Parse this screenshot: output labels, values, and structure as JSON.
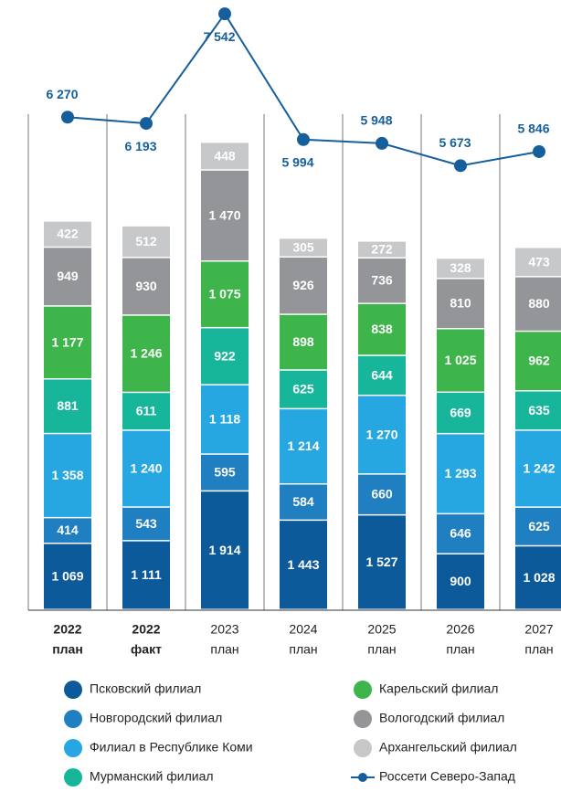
{
  "chart_data": {
    "type": "stacked_bar_line",
    "categories": [
      [
        "2022",
        "план"
      ],
      [
        "2022",
        "факт"
      ],
      [
        "2023",
        "план"
      ],
      [
        "2024",
        "план"
      ],
      [
        "2025",
        "план"
      ],
      [
        "2026",
        "план"
      ],
      [
        "2027",
        "план"
      ]
    ],
    "series": [
      {
        "name": "Псковский филиал",
        "color": "#0d5a9a",
        "values": [
          1069,
          1111,
          1914,
          1443,
          1527,
          900,
          1028
        ],
        "value_labels": [
          "1 069",
          "1 111",
          "1 914",
          "1 443",
          "1 527",
          "900",
          "1 028"
        ]
      },
      {
        "name": "Новгородский филиал",
        "color": "#1f7fc0",
        "values": [
          414,
          543,
          595,
          584,
          660,
          646,
          625
        ]
      },
      {
        "name": "Филиал в Республике Коми",
        "color": "#27a7e1",
        "values": [
          1358,
          1240,
          1118,
          1214,
          1270,
          1293,
          1242
        ],
        "value_labels": [
          "1 358",
          "1 240",
          "1 118",
          "1 214",
          "1 270",
          "1 293",
          "1 242"
        ]
      },
      {
        "name": "Мурманский филиал",
        "color": "#17b69b",
        "values": [
          881,
          611,
          922,
          625,
          644,
          669,
          635
        ]
      },
      {
        "name": "Карельский филиал",
        "color": "#3db54a",
        "values": [
          1177,
          1246,
          1075,
          898,
          838,
          1025,
          962
        ],
        "value_labels": [
          "1 177",
          "1 246",
          "1 075",
          "898",
          "838",
          "1 025",
          "962"
        ]
      },
      {
        "name": "Вологодский филиал",
        "color": "#939598",
        "values": [
          949,
          930,
          1470,
          926,
          736,
          810,
          880
        ],
        "value_labels": [
          "949",
          "930",
          "1 470",
          "926",
          "736",
          "810",
          "880"
        ]
      },
      {
        "name": "Архангельский филиал",
        "color": "#c7c8ca",
        "values": [
          422,
          512,
          448,
          305,
          272,
          328,
          473
        ]
      },
      {
        "name": "Россети Северо-Запад",
        "color": "#155f9c",
        "axis": "y2",
        "values": [
          6270,
          6193,
          7542,
          5994,
          5948,
          5673,
          5846
        ],
        "value_labels": [
          "6 270",
          "6 193",
          "7 542",
          "5 994",
          "5 948",
          "5 673",
          "5 846"
        ]
      }
    ],
    "ylim": [
      0,
      9700
    ],
    "y2lim": [
      200,
      7600
    ]
  }
}
